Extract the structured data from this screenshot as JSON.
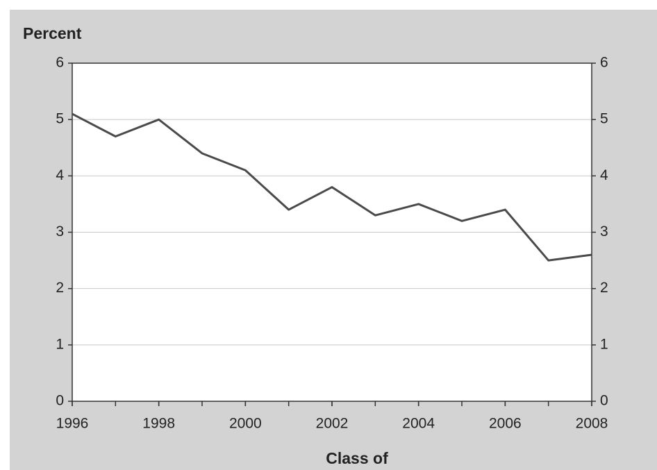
{
  "chart_data": {
    "type": "line",
    "y_label": "Percent",
    "x_label": "Class of",
    "x": [
      1996,
      1997,
      1998,
      1999,
      2000,
      2001,
      2002,
      2003,
      2004,
      2005,
      2006,
      2007,
      2008
    ],
    "series": [
      {
        "color": "#4a4a4a",
        "values": [
          5.1,
          4.7,
          5.0,
          4.4,
          4.1,
          3.4,
          3.8,
          3.3,
          3.5,
          3.2,
          3.4,
          2.5,
          2.6
        ]
      }
    ],
    "xlim": [
      1996,
      2008
    ],
    "xticks": [
      1996,
      1998,
      2000,
      2002,
      2004,
      2006,
      2008
    ],
    "ylim": [
      0,
      6
    ],
    "yticks": [
      0,
      1,
      2,
      3,
      4,
      5,
      6
    ],
    "y2lim": [
      0,
      6
    ],
    "y2ticks": [
      0,
      1,
      2,
      3,
      4,
      5,
      6
    ],
    "grid": true
  }
}
